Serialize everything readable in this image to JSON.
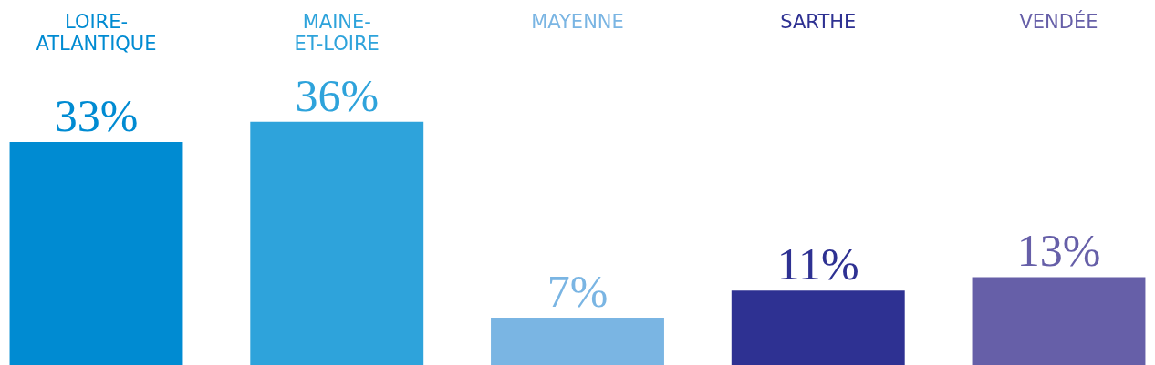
{
  "chart_data": {
    "type": "bar",
    "categories": [
      "LOIRE-ATLANTIQUE",
      "MAINE-ET-LOIRE",
      "MAYENNE",
      "SARTHE",
      "VENDÉE"
    ],
    "values": [
      33,
      36,
      7,
      11,
      13
    ],
    "colors": [
      "#008bd2",
      "#2ea3db",
      "#7ab5e3",
      "#2e3192",
      "#665fa8"
    ],
    "value_labels": [
      "33%",
      "36%",
      "7%",
      "11%",
      "13%"
    ]
  }
}
